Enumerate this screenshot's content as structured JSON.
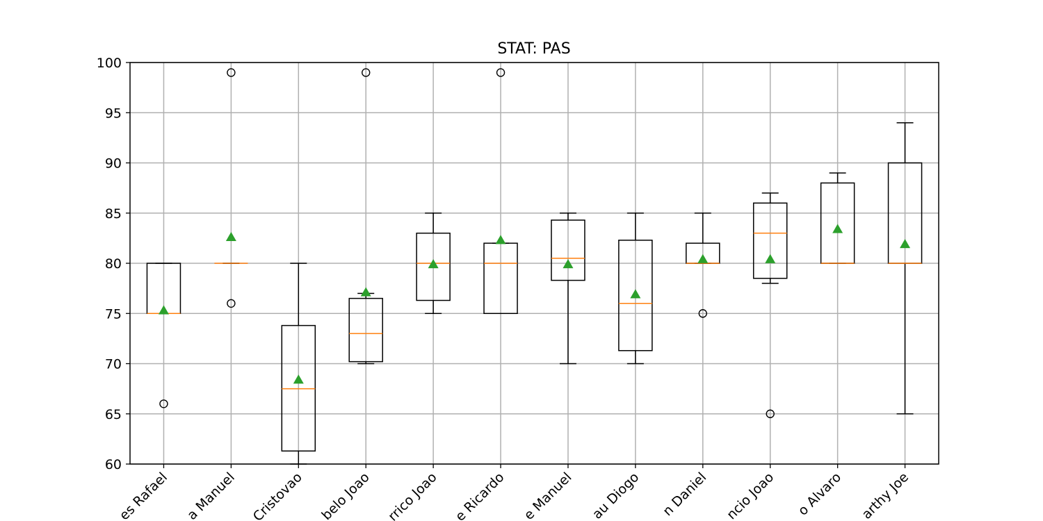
{
  "chart_data": {
    "type": "boxplot",
    "title": "STAT: PAS",
    "xlabel": "",
    "ylabel": "",
    "ylim": [
      60,
      100
    ],
    "yticks": [
      60,
      65,
      70,
      75,
      80,
      85,
      90,
      95,
      100
    ],
    "grid": true,
    "categories": [
      "es Rafael",
      "a Manuel",
      "Cristovao",
      "belo Joao",
      "rrico Joao",
      "e Ricardo",
      "e Manuel",
      "au Diogo",
      "n Daniel",
      "ncio Joao",
      "o Alvaro",
      "arthy Joe"
    ],
    "boxes": [
      {
        "whisker_low": 75,
        "q1": 75,
        "median": 75,
        "q3": 80,
        "whisker_high": 80,
        "mean": 75.3,
        "outliers": [
          66
        ]
      },
      {
        "whisker_low": 80,
        "q1": 80,
        "median": 80,
        "q3": 80,
        "whisker_high": 80,
        "mean": 82.6,
        "outliers": [
          99,
          76
        ]
      },
      {
        "whisker_low": 60,
        "q1": 61.3,
        "median": 67.5,
        "q3": 73.8,
        "whisker_high": 80,
        "mean": 68.4,
        "outliers": []
      },
      {
        "whisker_low": 70,
        "q1": 70.2,
        "median": 73,
        "q3": 76.5,
        "whisker_high": 77,
        "mean": 77.1,
        "outliers": [
          99
        ]
      },
      {
        "whisker_low": 75,
        "q1": 76.3,
        "median": 80,
        "q3": 83,
        "whisker_high": 85,
        "mean": 79.9,
        "outliers": []
      },
      {
        "whisker_low": 75,
        "q1": 75,
        "median": 80,
        "q3": 82,
        "whisker_high": 82,
        "mean": 82.3,
        "outliers": [
          99
        ]
      },
      {
        "whisker_low": 70,
        "q1": 78.3,
        "median": 80.5,
        "q3": 84.3,
        "whisker_high": 85,
        "mean": 79.9,
        "outliers": []
      },
      {
        "whisker_low": 70,
        "q1": 71.3,
        "median": 76,
        "q3": 82.3,
        "whisker_high": 85,
        "mean": 76.9,
        "outliers": []
      },
      {
        "whisker_low": 80,
        "q1": 80,
        "median": 80,
        "q3": 82,
        "whisker_high": 85,
        "mean": 80.4,
        "outliers": [
          75
        ]
      },
      {
        "whisker_low": 78,
        "q1": 78.5,
        "median": 83,
        "q3": 86,
        "whisker_high": 87,
        "mean": 80.4,
        "outliers": [
          65
        ]
      },
      {
        "whisker_low": 80,
        "q1": 80,
        "median": 80,
        "q3": 88,
        "whisker_high": 89,
        "mean": 83.4,
        "outliers": []
      },
      {
        "whisker_low": 65,
        "q1": 80,
        "median": 80,
        "q3": 90,
        "whisker_high": 94,
        "mean": 81.9,
        "outliers": []
      }
    ],
    "colors": {
      "box": "#000000",
      "median": "#ff7f0e",
      "mean": "#2ca02c",
      "grid": "#b0b0b0"
    }
  }
}
